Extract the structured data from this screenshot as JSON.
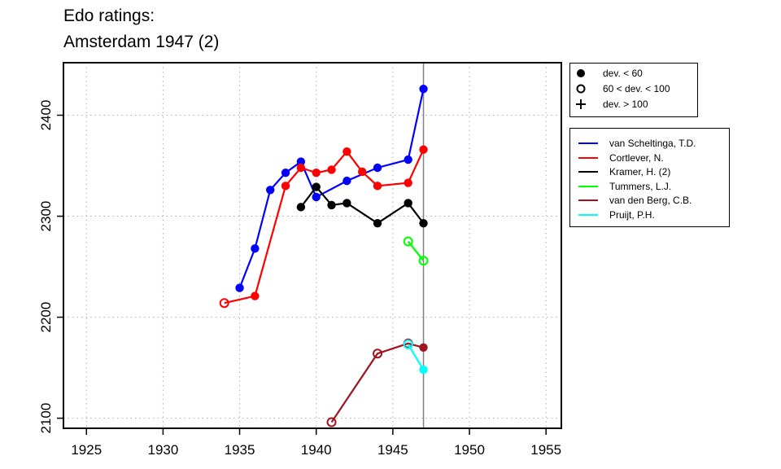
{
  "title": {
    "line1": "Edo ratings:",
    "line2": "Amsterdam 1947 (2)"
  },
  "marker_legend": [
    {
      "symbol": "filled-circle",
      "label": "dev. < 60"
    },
    {
      "symbol": "open-circle",
      "label": "60 < dev. < 100"
    },
    {
      "symbol": "plus",
      "label": "dev. > 100"
    }
  ],
  "chart_data": {
    "type": "line",
    "title": "Edo ratings: Amsterdam 1947 (2)",
    "xlabel": "",
    "ylabel": "",
    "xlim": [
      1923.5,
      1956
    ],
    "ylim": [
      2090,
      2452
    ],
    "xticks": [
      1925,
      1930,
      1935,
      1940,
      1945,
      1950,
      1955
    ],
    "yticks": [
      2100,
      2200,
      2300,
      2400
    ],
    "grid": true,
    "vline": 1947,
    "series": [
      {
        "name": "van Scheltinga, T.D.",
        "color": "#0000ff",
        "points": [
          {
            "x": 1935,
            "y": 2229,
            "m": "filled"
          },
          {
            "x": 1936,
            "y": 2268,
            "m": "filled"
          },
          {
            "x": 1937,
            "y": 2326,
            "m": "filled"
          },
          {
            "x": 1938,
            "y": 2343,
            "m": "filled"
          },
          {
            "x": 1939,
            "y": 2354,
            "m": "filled"
          },
          {
            "x": 1940,
            "y": 2319,
            "m": "filled"
          },
          {
            "x": 1942,
            "y": 2335,
            "m": "filled"
          },
          {
            "x": 1944,
            "y": 2348,
            "m": "filled"
          },
          {
            "x": 1946,
            "y": 2356,
            "m": "filled"
          },
          {
            "x": 1947,
            "y": 2426,
            "m": "filled"
          }
        ]
      },
      {
        "name": "Cortlever, N.",
        "color": "#ff0000",
        "points": [
          {
            "x": 1934,
            "y": 2214,
            "m": "open"
          },
          {
            "x": 1936,
            "y": 2221,
            "m": "filled"
          },
          {
            "x": 1938,
            "y": 2330,
            "m": "filled"
          },
          {
            "x": 1939,
            "y": 2348,
            "m": "filled"
          },
          {
            "x": 1940,
            "y": 2343,
            "m": "filled"
          },
          {
            "x": 1941,
            "y": 2346,
            "m": "filled"
          },
          {
            "x": 1942,
            "y": 2364,
            "m": "filled"
          },
          {
            "x": 1943,
            "y": 2344,
            "m": "filled"
          },
          {
            "x": 1944,
            "y": 2330,
            "m": "filled"
          },
          {
            "x": 1946,
            "y": 2333,
            "m": "filled"
          },
          {
            "x": 1947,
            "y": 2366,
            "m": "filled"
          }
        ]
      },
      {
        "name": "Kramer, H. (2)",
        "color": "#000000",
        "points": [
          {
            "x": 1939,
            "y": 2309,
            "m": "filled"
          },
          {
            "x": 1940,
            "y": 2329,
            "m": "filled"
          },
          {
            "x": 1941,
            "y": 2311,
            "m": "filled"
          },
          {
            "x": 1942,
            "y": 2313,
            "m": "filled"
          },
          {
            "x": 1944,
            "y": 2293,
            "m": "filled"
          },
          {
            "x": 1946,
            "y": 2313,
            "m": "filled"
          },
          {
            "x": 1947,
            "y": 2293,
            "m": "filled"
          }
        ]
      },
      {
        "name": "Tummers, L.J.",
        "color": "#00ff00",
        "points": [
          {
            "x": 1946,
            "y": 2275,
            "m": "open"
          },
          {
            "x": 1947,
            "y": 2256,
            "m": "open"
          }
        ]
      },
      {
        "name": "van den Berg, C.B.",
        "color": "#a0141e",
        "points": [
          {
            "x": 1941,
            "y": 2096,
            "m": "open"
          },
          {
            "x": 1944,
            "y": 2164,
            "m": "open"
          },
          {
            "x": 1946,
            "y": 2174,
            "m": "open"
          },
          {
            "x": 1947,
            "y": 2170,
            "m": "filled"
          }
        ]
      },
      {
        "name": "Pruijt, P.H.",
        "color": "#00ffff",
        "points": [
          {
            "x": 1946,
            "y": 2173,
            "m": "open"
          },
          {
            "x": 1947,
            "y": 2148,
            "m": "filled"
          }
        ]
      }
    ]
  }
}
